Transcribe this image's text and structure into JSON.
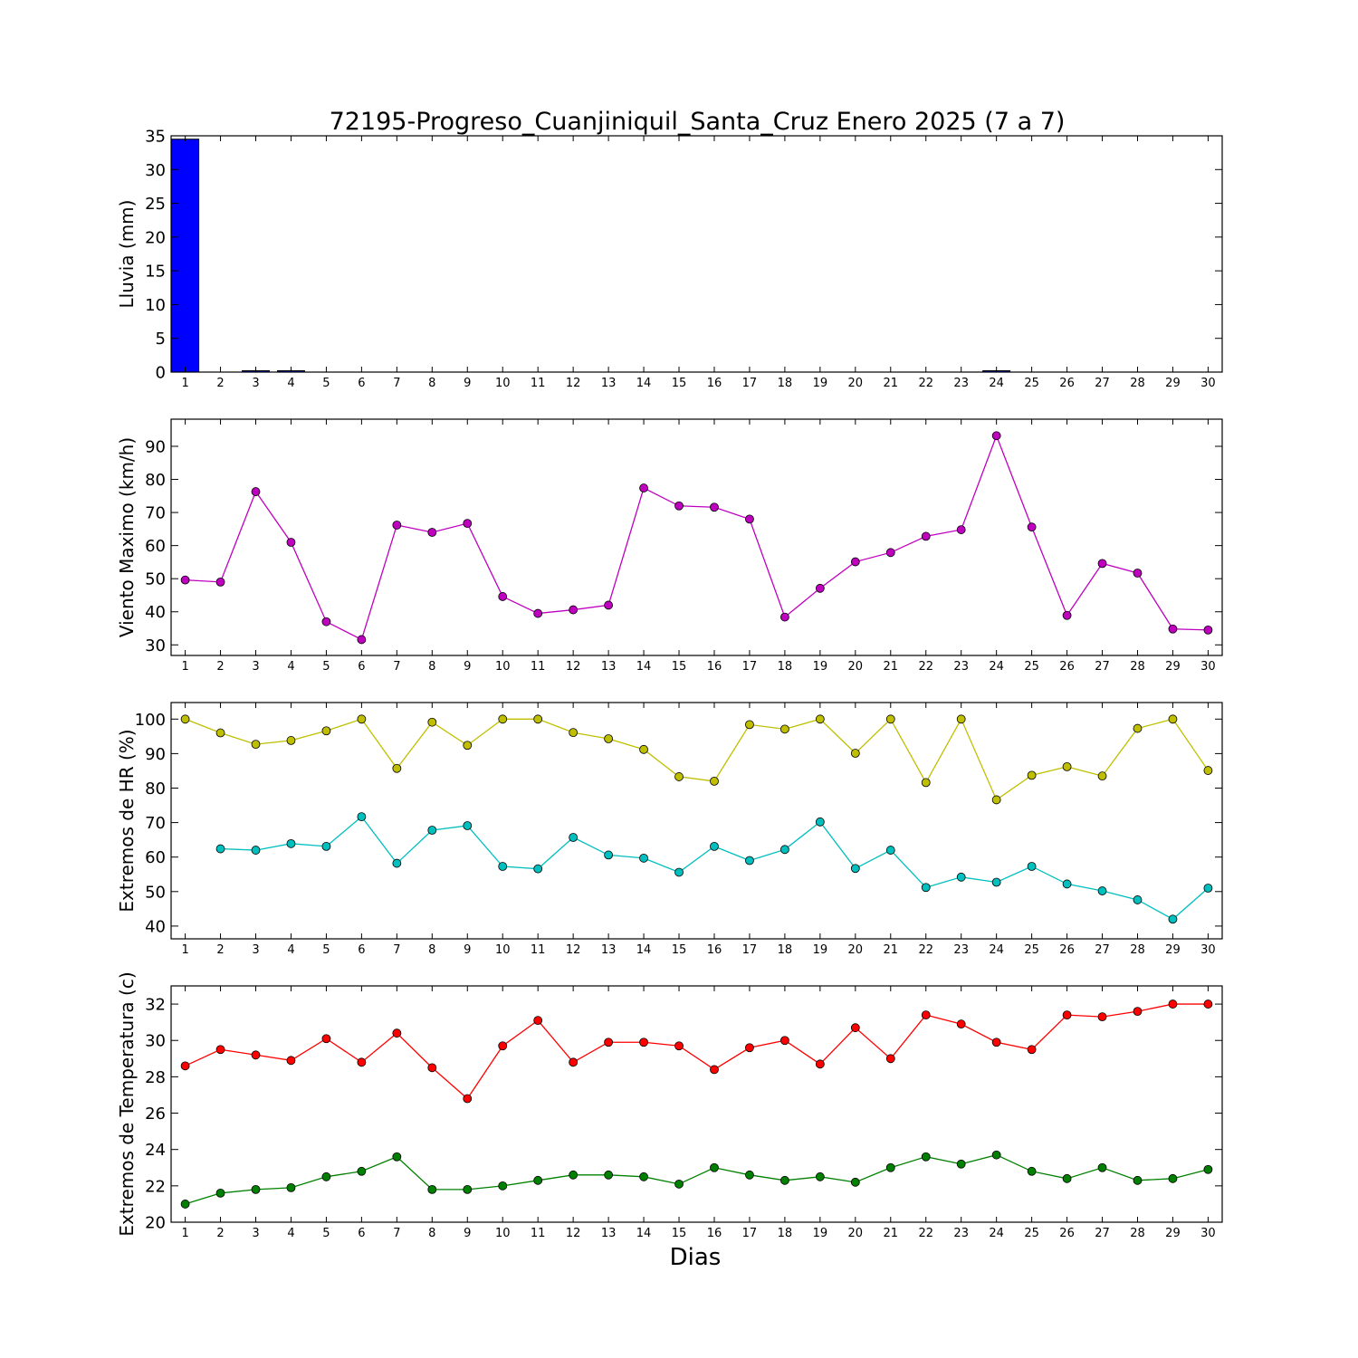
{
  "title": "72195-Progreso_Cuanjiniquil_Santa_Cruz Enero 2025  (7 a 7)",
  "xlabel": "Dias",
  "chart_data": [
    {
      "type": "bar",
      "ylabel": "Lluvia (mm)",
      "ylim": [
        0,
        35
      ],
      "yticks": [
        0,
        5,
        10,
        15,
        20,
        25,
        30,
        35
      ],
      "x": [
        1,
        2,
        3,
        4,
        5,
        6,
        7,
        8,
        9,
        10,
        11,
        12,
        13,
        14,
        15,
        16,
        17,
        18,
        19,
        20,
        21,
        22,
        23,
        24,
        25,
        26,
        27,
        28,
        29,
        30
      ],
      "series": [
        {
          "values": [
            34.5,
            0,
            0.2,
            0.2,
            0,
            0,
            0,
            0,
            0,
            0,
            0,
            0,
            0,
            0,
            0,
            0,
            0,
            0,
            0,
            0,
            0,
            0,
            0,
            0.2,
            0,
            0,
            0,
            0,
            0,
            0
          ],
          "color": "#0000ff"
        }
      ]
    },
    {
      "type": "line",
      "ylabel": "Viento Maximo (km/h)",
      "ylim": [
        26.8,
        98.2
      ],
      "yticks": [
        30,
        40,
        50,
        60,
        70,
        80,
        90
      ],
      "x": [
        1,
        2,
        3,
        4,
        5,
        6,
        7,
        8,
        9,
        10,
        11,
        12,
        13,
        14,
        15,
        16,
        17,
        18,
        19,
        20,
        21,
        22,
        23,
        24,
        25,
        26,
        27,
        28,
        29,
        30
      ],
      "series": [
        {
          "values": [
            49.6,
            49.0,
            76.3,
            61.0,
            37.0,
            31.6,
            66.2,
            64.0,
            66.7,
            44.6,
            39.5,
            40.6,
            42.0,
            77.4,
            72.0,
            71.6,
            68.0,
            38.4,
            47.1,
            55.1,
            57.9,
            62.8,
            64.8,
            93.2,
            65.6,
            38.9,
            54.6,
            51.7,
            34.8,
            34.5
          ],
          "color": "#bf00bf"
        }
      ]
    },
    {
      "type": "line",
      "ylabel": "Extremos de HR (%)",
      "ylim": [
        36.3,
        104.8
      ],
      "yticks": [
        40,
        50,
        60,
        70,
        80,
        90,
        100
      ],
      "x": [
        1,
        2,
        3,
        4,
        5,
        6,
        7,
        8,
        9,
        10,
        11,
        12,
        13,
        14,
        15,
        16,
        17,
        18,
        19,
        20,
        21,
        22,
        23,
        24,
        25,
        26,
        27,
        28,
        29,
        30
      ],
      "series": [
        {
          "values": [
            100,
            96,
            92.7,
            93.8,
            96.6,
            100,
            85.7,
            99.1,
            92.4,
            100,
            100,
            96.1,
            94.3,
            91.2,
            83.3,
            82.0,
            98.4,
            97.1,
            100,
            90.1,
            100,
            81.6,
            100,
            76.6,
            83.7,
            86.2,
            83.5,
            97.3,
            100,
            85.1
          ],
          "color": "#bfbf00"
        },
        {
          "values": [
            null,
            62.4,
            62.0,
            63.9,
            63.1,
            71.7,
            58.2,
            67.8,
            69.1,
            57.3,
            56.6,
            65.7,
            60.6,
            59.7,
            55.6,
            63.1,
            59.0,
            62.2,
            70.2,
            56.7,
            62.0,
            51.2,
            54.2,
            52.7,
            57.3,
            52.2,
            50.2,
            47.6,
            42.0,
            51.0
          ],
          "color": "#00bfbf"
        }
      ]
    },
    {
      "type": "line",
      "ylabel": "Extremos de Temperatura (c)",
      "ylim": [
        20,
        33
      ],
      "yticks": [
        20,
        22,
        24,
        26,
        28,
        30,
        32
      ],
      "x": [
        1,
        2,
        3,
        4,
        5,
        6,
        7,
        8,
        9,
        10,
        11,
        12,
        13,
        14,
        15,
        16,
        17,
        18,
        19,
        20,
        21,
        22,
        23,
        24,
        25,
        26,
        27,
        28,
        29,
        30
      ],
      "series": [
        {
          "values": [
            28.6,
            29.5,
            29.2,
            28.9,
            30.1,
            28.8,
            30.4,
            28.5,
            26.8,
            29.7,
            31.1,
            28.8,
            29.9,
            29.9,
            29.7,
            28.4,
            29.6,
            30.0,
            28.7,
            30.7,
            29.0,
            31.4,
            30.9,
            29.9,
            29.5,
            31.4,
            31.3,
            31.6,
            32.0,
            32.0
          ],
          "color": "#ff0000"
        },
        {
          "values": [
            21.0,
            21.6,
            21.8,
            21.9,
            22.5,
            22.8,
            23.6,
            21.8,
            21.8,
            22.0,
            22.3,
            22.6,
            22.6,
            22.5,
            22.1,
            23.0,
            22.6,
            22.3,
            22.5,
            22.2,
            23.0,
            23.6,
            23.2,
            23.7,
            22.8,
            22.4,
            23.0,
            22.3,
            22.4,
            22.9
          ],
          "color": "#008000"
        }
      ]
    }
  ]
}
